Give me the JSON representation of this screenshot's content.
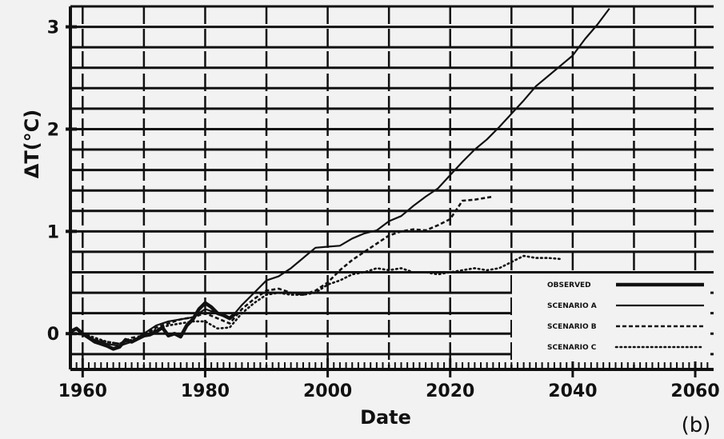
{
  "chart_data": {
    "type": "line",
    "title": "",
    "xlabel": "Date",
    "ylabel": "ΔT(°C)",
    "panel_label": "(b)",
    "xlim": [
      1958,
      2063
    ],
    "ylim": [
      -0.35,
      3.2
    ],
    "x_ticks": [
      1960,
      1980,
      2000,
      2020,
      2040,
      2060
    ],
    "y_ticks": [
      0,
      1,
      2,
      3
    ],
    "grid": true,
    "legend_position": "lower-right",
    "colors": {
      "ink": "#111111",
      "background": "#f2f2f2"
    },
    "series": [
      {
        "name": "OBSERVED",
        "style": "thick",
        "points": [
          [
            1958,
            0.02
          ],
          [
            1959,
            0.05
          ],
          [
            1960,
            0.0
          ],
          [
            1961,
            -0.04
          ],
          [
            1962,
            -0.08
          ],
          [
            1963,
            -0.1
          ],
          [
            1964,
            -0.12
          ],
          [
            1965,
            -0.15
          ],
          [
            1966,
            -0.13
          ],
          [
            1967,
            -0.06
          ],
          [
            1968,
            -0.08
          ],
          [
            1969,
            -0.05
          ],
          [
            1970,
            -0.02
          ],
          [
            1971,
            -0.01
          ],
          [
            1972,
            0.02
          ],
          [
            1973,
            0.06
          ],
          [
            1974,
            -0.02
          ],
          [
            1975,
            0.0
          ],
          [
            1976,
            -0.03
          ],
          [
            1977,
            0.08
          ],
          [
            1978,
            0.14
          ],
          [
            1979,
            0.24
          ],
          [
            1980,
            0.3
          ],
          [
            1981,
            0.26
          ],
          [
            1982,
            0.2
          ],
          [
            1983,
            0.18
          ],
          [
            1984,
            0.15
          ],
          [
            1985,
            0.2
          ]
        ]
      },
      {
        "name": "SCENARIO A",
        "style": "solid",
        "points": [
          [
            1958,
            0.0
          ],
          [
            1960,
            -0.01
          ],
          [
            1962,
            -0.06
          ],
          [
            1964,
            -0.1
          ],
          [
            1966,
            -0.12
          ],
          [
            1968,
            -0.08
          ],
          [
            1970,
            0.0
          ],
          [
            1972,
            0.08
          ],
          [
            1974,
            0.12
          ],
          [
            1976,
            0.14
          ],
          [
            1978,
            0.16
          ],
          [
            1980,
            0.24
          ],
          [
            1982,
            0.2
          ],
          [
            1984,
            0.14
          ],
          [
            1986,
            0.28
          ],
          [
            1988,
            0.4
          ],
          [
            1990,
            0.52
          ],
          [
            1992,
            0.56
          ],
          [
            1994,
            0.64
          ],
          [
            1996,
            0.74
          ],
          [
            1998,
            0.84
          ],
          [
            2000,
            0.85
          ],
          [
            2002,
            0.86
          ],
          [
            2004,
            0.93
          ],
          [
            2006,
            0.98
          ],
          [
            2008,
            1.01
          ],
          [
            2010,
            1.1
          ],
          [
            2012,
            1.15
          ],
          [
            2014,
            1.25
          ],
          [
            2016,
            1.34
          ],
          [
            2018,
            1.42
          ],
          [
            2020,
            1.55
          ],
          [
            2022,
            1.68
          ],
          [
            2024,
            1.8
          ],
          [
            2026,
            1.9
          ],
          [
            2028,
            2.02
          ],
          [
            2030,
            2.15
          ],
          [
            2032,
            2.28
          ],
          [
            2034,
            2.42
          ],
          [
            2036,
            2.52
          ],
          [
            2038,
            2.62
          ],
          [
            2040,
            2.72
          ],
          [
            2042,
            2.88
          ],
          [
            2044,
            3.02
          ],
          [
            2046,
            3.18
          ]
        ]
      },
      {
        "name": "SCENARIO B",
        "style": "dashed",
        "points": [
          [
            1958,
            0.0
          ],
          [
            1960,
            0.0
          ],
          [
            1962,
            -0.06
          ],
          [
            1964,
            -0.08
          ],
          [
            1966,
            -0.1
          ],
          [
            1968,
            -0.04
          ],
          [
            1970,
            -0.02
          ],
          [
            1972,
            0.06
          ],
          [
            1974,
            0.1
          ],
          [
            1976,
            0.14
          ],
          [
            1978,
            0.16
          ],
          [
            1980,
            0.2
          ],
          [
            1982,
            0.15
          ],
          [
            1984,
            0.1
          ],
          [
            1986,
            0.24
          ],
          [
            1988,
            0.34
          ],
          [
            1990,
            0.42
          ],
          [
            1992,
            0.44
          ],
          [
            1994,
            0.4
          ],
          [
            1996,
            0.38
          ],
          [
            1998,
            0.42
          ],
          [
            2000,
            0.5
          ],
          [
            2002,
            0.62
          ],
          [
            2004,
            0.72
          ],
          [
            2006,
            0.8
          ],
          [
            2008,
            0.88
          ],
          [
            2010,
            0.96
          ],
          [
            2012,
            1.0
          ],
          [
            2014,
            1.02
          ],
          [
            2016,
            1.01
          ],
          [
            2018,
            1.06
          ],
          [
            2020,
            1.12
          ],
          [
            2022,
            1.3
          ],
          [
            2024,
            1.31
          ],
          [
            2026,
            1.33
          ],
          [
            2027,
            1.34
          ]
        ]
      },
      {
        "name": "SCENARIO C",
        "style": "dotted",
        "points": [
          [
            1958,
            0.0
          ],
          [
            1960,
            0.0
          ],
          [
            1962,
            -0.04
          ],
          [
            1964,
            -0.08
          ],
          [
            1966,
            -0.1
          ],
          [
            1968,
            -0.06
          ],
          [
            1970,
            -0.02
          ],
          [
            1972,
            0.04
          ],
          [
            1974,
            0.08
          ],
          [
            1976,
            0.1
          ],
          [
            1978,
            0.12
          ],
          [
            1980,
            0.12
          ],
          [
            1982,
            0.05
          ],
          [
            1984,
            0.06
          ],
          [
            1986,
            0.2
          ],
          [
            1988,
            0.3
          ],
          [
            1990,
            0.38
          ],
          [
            1992,
            0.4
          ],
          [
            1994,
            0.38
          ],
          [
            1996,
            0.38
          ],
          [
            1998,
            0.4
          ],
          [
            2000,
            0.48
          ],
          [
            2002,
            0.52
          ],
          [
            2004,
            0.58
          ],
          [
            2006,
            0.6
          ],
          [
            2008,
            0.64
          ],
          [
            2010,
            0.62
          ],
          [
            2012,
            0.64
          ],
          [
            2014,
            0.6
          ],
          [
            2016,
            0.6
          ],
          [
            2018,
            0.58
          ],
          [
            2020,
            0.6
          ],
          [
            2022,
            0.62
          ],
          [
            2024,
            0.64
          ],
          [
            2026,
            0.62
          ],
          [
            2028,
            0.64
          ],
          [
            2030,
            0.7
          ],
          [
            2032,
            0.76
          ],
          [
            2034,
            0.74
          ],
          [
            2036,
            0.74
          ],
          [
            2038,
            0.73
          ]
        ]
      }
    ]
  }
}
